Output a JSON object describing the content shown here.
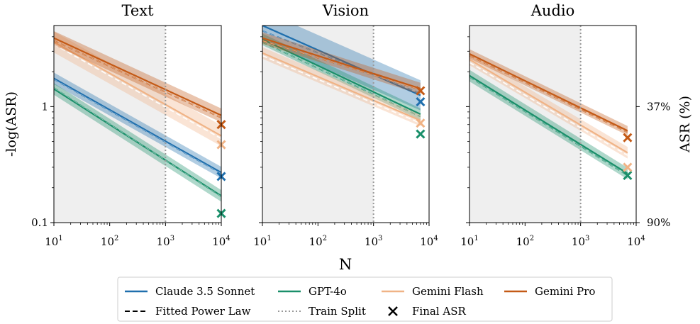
{
  "colors": {
    "claude": "#1f6fad",
    "gpt": "#1a8f6a",
    "flash": "#f0b386",
    "pro": "#c45a16",
    "train_region": "#efefef",
    "train_split": "#999999"
  },
  "chart_data": {
    "type": "line",
    "xscale": "log",
    "yscale": "log",
    "xlim": [
      10,
      10000
    ],
    "ylim": [
      0.1,
      5
    ],
    "xlabel": "N",
    "ylabel": "-log(ASR)",
    "ylabel_right": "ASR (%)",
    "xticks": [
      "10^1",
      "10^2",
      "10^3",
      "10^4"
    ],
    "yticks": [
      "0.1",
      "1"
    ],
    "yticks_right": [
      "37%",
      "90%"
    ],
    "train_split_x": 1000,
    "grid": false,
    "legend": {
      "placement": "bottom",
      "entries": [
        "Claude 3.5 Sonnet",
        "GPT-4o",
        "Gemini Flash",
        "Gemini Pro",
        "Fitted Power Law",
        "Train Split",
        "Final ASR"
      ]
    },
    "panels": [
      {
        "title": "Text",
        "series": [
          {
            "name": "Claude 3.5 Sonnet",
            "key": "claude",
            "x": [
              10,
              10000
            ],
            "y": [
              1.75,
              0.27
            ],
            "fit": [
              1.72,
              0.265
            ],
            "band": 0.05,
            "final": {
              "x": 10000,
              "y": 0.25
            }
          },
          {
            "name": "GPT-4o",
            "key": "gpt",
            "x": [
              10,
              10000
            ],
            "y": [
              1.42,
              0.17
            ],
            "fit": [
              1.45,
              0.168
            ],
            "band": 0.05,
            "final": {
              "x": 10000,
              "y": 0.12
            }
          },
          {
            "name": "Gemini Flash",
            "key": "flash",
            "x": [
              10,
              10000
            ],
            "y": [
              3.6,
              0.56
            ],
            "fit": [
              3.45,
              0.53
            ],
            "band": 0.09,
            "final": {
              "x": 10000,
              "y": 0.47
            }
          },
          {
            "name": "Gemini Pro",
            "key": "pro",
            "x": [
              10,
              10000
            ],
            "y": [
              3.9,
              0.84
            ],
            "fit": [
              3.7,
              0.8
            ],
            "band": 0.06,
            "final": {
              "x": 10000,
              "y": 0.7
            }
          }
        ]
      },
      {
        "title": "Vision",
        "series": [
          {
            "name": "Claude 3.5 Sonnet",
            "key": "claude",
            "x": [
              10,
              7000
            ],
            "y": [
              5.0,
              1.25
            ],
            "fit": [
              4.5,
              1.3
            ],
            "band": 0.13,
            "final": {
              "x": 7000,
              "y": 1.1
            }
          },
          {
            "name": "GPT-4o",
            "key": "gpt",
            "x": [
              10,
              7000
            ],
            "y": [
              3.8,
              0.86
            ],
            "fit": [
              3.6,
              0.82
            ],
            "band": 0.05,
            "final": {
              "x": 7000,
              "y": 0.58
            }
          },
          {
            "name": "Gemini Flash",
            "key": "flash",
            "x": [
              10,
              7000
            ],
            "y": [
              2.9,
              0.76
            ],
            "fit": [
              2.75,
              0.72
            ],
            "band": 0.05,
            "final": {
              "x": 7000,
              "y": 0.72
            }
          },
          {
            "name": "Gemini Pro",
            "key": "pro",
            "x": [
              10,
              7000
            ],
            "y": [
              3.9,
              1.43
            ],
            "fit": [
              3.7,
              1.4
            ],
            "band": 0.05,
            "final": {
              "x": 7000,
              "y": 1.37
            }
          }
        ]
      },
      {
        "title": "Audio",
        "series": [
          {
            "name": "GPT-4o",
            "key": "gpt",
            "x": [
              10,
              7000
            ],
            "y": [
              1.85,
              0.265
            ],
            "fit": [
              1.8,
              0.255
            ],
            "band": 0.05,
            "final": {
              "x": 7000,
              "y": 0.255
            }
          },
          {
            "name": "Gemini Flash",
            "key": "flash",
            "x": [
              10,
              7000
            ],
            "y": [
              2.55,
              0.4
            ],
            "fit": [
              2.4,
              0.38
            ],
            "band": 0.05,
            "final": {
              "x": 7000,
              "y": 0.3
            }
          },
          {
            "name": "Gemini Pro",
            "key": "pro",
            "x": [
              10,
              7000
            ],
            "y": [
              2.85,
              0.62
            ],
            "fit": [
              2.75,
              0.6
            ],
            "band": 0.04,
            "final": {
              "x": 7000,
              "y": 0.54
            }
          }
        ]
      }
    ]
  }
}
